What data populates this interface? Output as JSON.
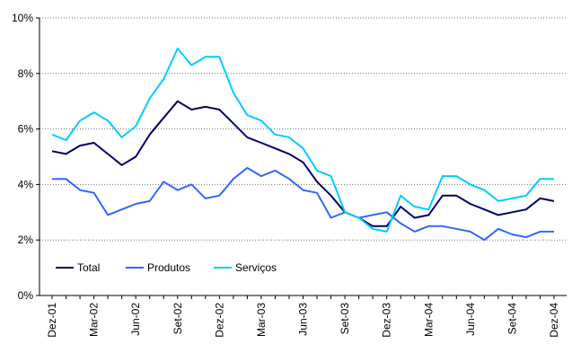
{
  "chart_data": {
    "type": "line",
    "title": "",
    "xlabel": "",
    "ylabel": "",
    "ylim": [
      0,
      10
    ],
    "y_ticks": [
      "0%",
      "2%",
      "4%",
      "6%",
      "8%",
      "10%"
    ],
    "grid": "horizontal",
    "legend_position": "bottom-left",
    "x_tick_labels": [
      "Dez-01",
      "Mar-02",
      "Jun-02",
      "Set-02",
      "Dez-02",
      "Mar-03",
      "Jun-03",
      "Set-03",
      "Dez-03",
      "Mar-04",
      "Jun-04",
      "Set-04",
      "Dez-04"
    ],
    "x": [
      "Dez-01",
      "Jan-02",
      "Fev-02",
      "Mar-02",
      "Abr-02",
      "Mai-02",
      "Jun-02",
      "Jul-02",
      "Ago-02",
      "Set-02",
      "Out-02",
      "Nov-02",
      "Dez-02",
      "Jan-03",
      "Fev-03",
      "Mar-03",
      "Abr-03",
      "Mai-03",
      "Jun-03",
      "Jul-03",
      "Ago-03",
      "Set-03",
      "Out-03",
      "Nov-03",
      "Dez-03",
      "Jan-04",
      "Fev-04",
      "Mar-04",
      "Abr-04",
      "Mai-04",
      "Jun-04",
      "Jul-04",
      "Ago-04",
      "Set-04",
      "Out-04",
      "Nov-04",
      "Dez-04"
    ],
    "series": [
      {
        "name": "Total",
        "color": "#000066",
        "values": [
          5.2,
          5.1,
          5.4,
          5.5,
          5.1,
          4.7,
          5.0,
          5.8,
          6.4,
          7.0,
          6.7,
          6.8,
          6.7,
          6.2,
          5.7,
          5.5,
          5.3,
          5.1,
          4.8,
          4.1,
          3.6,
          3.0,
          2.8,
          2.5,
          2.5,
          3.2,
          2.8,
          2.9,
          3.6,
          3.6,
          3.3,
          3.1,
          2.9,
          3.0,
          3.1,
          3.5,
          3.4
        ]
      },
      {
        "name": "Produtos",
        "color": "#3366FF",
        "values": [
          4.2,
          4.2,
          3.8,
          3.7,
          2.9,
          3.1,
          3.3,
          3.4,
          4.1,
          3.8,
          4.0,
          3.5,
          3.6,
          4.2,
          4.6,
          4.3,
          4.5,
          4.2,
          3.8,
          3.7,
          2.8,
          3.0,
          2.8,
          2.9,
          3.0,
          2.6,
          2.3,
          2.5,
          2.5,
          2.4,
          2.3,
          2.0,
          2.4,
          2.2,
          2.1,
          2.3,
          2.3
        ]
      },
      {
        "name": "Serviços",
        "color": "#00CCFF",
        "values": [
          5.8,
          5.6,
          6.3,
          6.6,
          6.3,
          5.7,
          6.1,
          7.1,
          7.8,
          8.9,
          8.3,
          8.6,
          8.6,
          7.3,
          6.5,
          6.3,
          5.8,
          5.7,
          5.3,
          4.5,
          4.3,
          3.0,
          2.8,
          2.4,
          2.3,
          3.6,
          3.2,
          3.1,
          4.3,
          4.3,
          4.0,
          3.8,
          3.4,
          3.5,
          3.6,
          4.2,
          4.2
        ]
      }
    ]
  }
}
